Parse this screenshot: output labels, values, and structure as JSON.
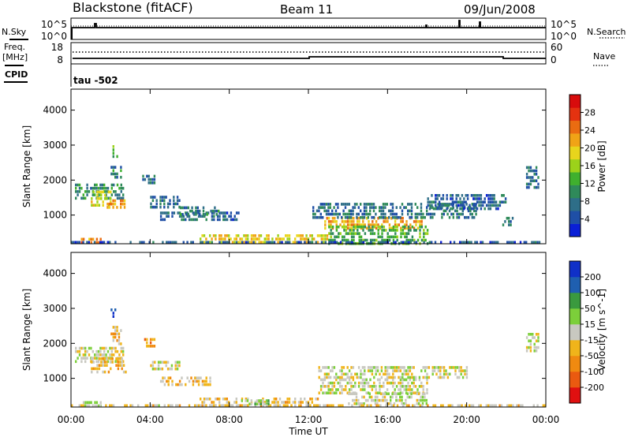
{
  "header": {
    "station": "Blackstone (fitACF)",
    "beam": "Beam 11",
    "date": "09/Jun/2008"
  },
  "status_panels": {
    "nsky_label": "N.Sky",
    "nsearch_label": "N.Search",
    "freq_label_line1": "Freq.",
    "freq_label_line2": "[MHz]",
    "cpid_label": "CPID",
    "nave_label": "Nave",
    "noise_ticks": [
      "10^5",
      "10^0"
    ],
    "freq_ticks": [
      "18",
      "8"
    ],
    "nave_ticks": [
      "60",
      "0"
    ],
    "cpid_text": "tau -502"
  },
  "chart_data": [
    {
      "type": "heatmap",
      "name": "Power",
      "x_title": "Time UT",
      "x_ticks": [
        "00:00",
        "04:00",
        "08:00",
        "12:00",
        "16:00",
        "20:00",
        "00:00"
      ],
      "xlim": [
        0,
        24
      ],
      "ylabel": "Slant Range [km]",
      "y_ticks": [
        "4000",
        "3000",
        "2000",
        "1000"
      ],
      "ylim": [
        180,
        4600
      ],
      "colorbar_label": "Power [dB]",
      "colorbar_ticks": [
        "28",
        "24",
        "20",
        "16",
        "12",
        "8",
        "4"
      ],
      "colorbar_range": [
        0,
        30
      ],
      "colors": [
        "#0a1fd6",
        "#1f4fa6",
        "#2e6e88",
        "#2f8a5a",
        "#3fb02e",
        "#9cd21a",
        "#e8d51c",
        "#f0a316",
        "#ea6c11",
        "#e43210",
        "#d80c0c"
      ],
      "regions": [
        {
          "t": [
            0.2,
            2.6
          ],
          "r": [
            1500,
            1900
          ],
          "v": 9
        },
        {
          "t": [
            1.0,
            2.0
          ],
          "r": [
            1300,
            1700
          ],
          "v": 16
        },
        {
          "t": [
            1.8,
            2.7
          ],
          "r": [
            1200,
            1450
          ],
          "v": 20
        },
        {
          "t": [
            2.0,
            2.5
          ],
          "r": [
            2100,
            2500
          ],
          "v": 8
        },
        {
          "t": [
            2.0,
            2.3
          ],
          "r": [
            2700,
            3000
          ],
          "v": 14
        },
        {
          "t": [
            3.6,
            4.2
          ],
          "r": [
            1900,
            2150
          ],
          "v": 6
        },
        {
          "t": [
            4.0,
            5.5
          ],
          "r": [
            1200,
            1550
          ],
          "v": 7
        },
        {
          "t": [
            4.5,
            8.5
          ],
          "r": [
            850,
            1100
          ],
          "v": 6
        },
        {
          "t": [
            5.5,
            7.5
          ],
          "r": [
            1050,
            1250
          ],
          "v": 8
        },
        {
          "t": [
            12.8,
            17.8
          ],
          "r": [
            650,
            950
          ],
          "v": 20
        },
        {
          "t": [
            12.2,
            20.5
          ],
          "r": [
            950,
            1350
          ],
          "v": 7
        },
        {
          "t": [
            18.0,
            22.0
          ],
          "r": [
            1200,
            1600
          ],
          "v": 6
        },
        {
          "t": [
            21.8,
            22.3
          ],
          "r": [
            750,
            950
          ],
          "v": 6
        },
        {
          "t": [
            23.0,
            23.6
          ],
          "r": [
            1800,
            2400
          ],
          "v": 7
        },
        {
          "t": [
            0.5,
            1.5
          ],
          "r": [
            200,
            350
          ],
          "v": 22
        },
        {
          "t": [
            6.5,
            13.0
          ],
          "r": [
            200,
            450
          ],
          "v": 18
        },
        {
          "t": [
            13.0,
            18.0
          ],
          "r": [
            200,
            700
          ],
          "v": 12
        },
        {
          "t": [
            0.0,
            24.0
          ],
          "r": [
            190,
            260
          ],
          "v": 5
        }
      ]
    },
    {
      "type": "heatmap",
      "name": "Velocity",
      "x_title": "Time UT",
      "x_ticks": [
        "00:00",
        "04:00",
        "08:00",
        "12:00",
        "16:00",
        "20:00",
        "00:00"
      ],
      "xlim": [
        0,
        24
      ],
      "ylabel": "Slant Range [km]",
      "y_ticks": [
        "4000",
        "3000",
        "2000",
        "1000"
      ],
      "ylim": [
        180,
        4600
      ],
      "colorbar_label": "Velocity [m s^-1]",
      "colorbar_ticks": [
        "200",
        "100",
        "50",
        "15",
        "-15",
        "-50",
        "-100",
        "-200"
      ],
      "colorbar_range": [
        -250,
        250
      ],
      "colors": [
        "#e01010",
        "#ea5a10",
        "#f08a10",
        "#f0b41a",
        "#c8c8c0",
        "#7ccf3a",
        "#3a9a3e",
        "#1f5fb0",
        "#1030c8"
      ],
      "regions": [
        {
          "t": [
            0.2,
            2.6
          ],
          "r": [
            1500,
            1900
          ],
          "v": 0
        },
        {
          "t": [
            1.0,
            2.8
          ],
          "r": [
            1150,
            1600
          ],
          "v": -40
        },
        {
          "t": [
            2.0,
            2.5
          ],
          "r": [
            2000,
            2500
          ],
          "v": -50
        },
        {
          "t": [
            2.0,
            2.2
          ],
          "r": [
            2800,
            3000
          ],
          "v": 150
        },
        {
          "t": [
            3.6,
            4.2
          ],
          "r": [
            1950,
            2150
          ],
          "v": -100
        },
        {
          "t": [
            4.0,
            5.5
          ],
          "r": [
            1300,
            1500
          ],
          "v": 0
        },
        {
          "t": [
            4.5,
            7.0
          ],
          "r": [
            850,
            1050
          ],
          "v": -40
        },
        {
          "t": [
            6.5,
            12.5
          ],
          "r": [
            200,
            450
          ],
          "v": -40
        },
        {
          "t": [
            8.5,
            10.0
          ],
          "r": [
            250,
            400
          ],
          "v": 40
        },
        {
          "t": [
            12.5,
            18.0
          ],
          "r": [
            600,
            1000
          ],
          "v": 0
        },
        {
          "t": [
            12.5,
            20.0
          ],
          "r": [
            1000,
            1350
          ],
          "v": 0
        },
        {
          "t": [
            14.0,
            18.0
          ],
          "r": [
            300,
            600
          ],
          "v": 20
        },
        {
          "t": [
            23.0,
            23.6
          ],
          "r": [
            1800,
            2300
          ],
          "v": 0
        },
        {
          "t": [
            0.5,
            1.5
          ],
          "r": [
            200,
            350
          ],
          "v": 25
        },
        {
          "t": [
            0.0,
            24.0
          ],
          "r": [
            190,
            260
          ],
          "v": -30
        }
      ]
    }
  ]
}
